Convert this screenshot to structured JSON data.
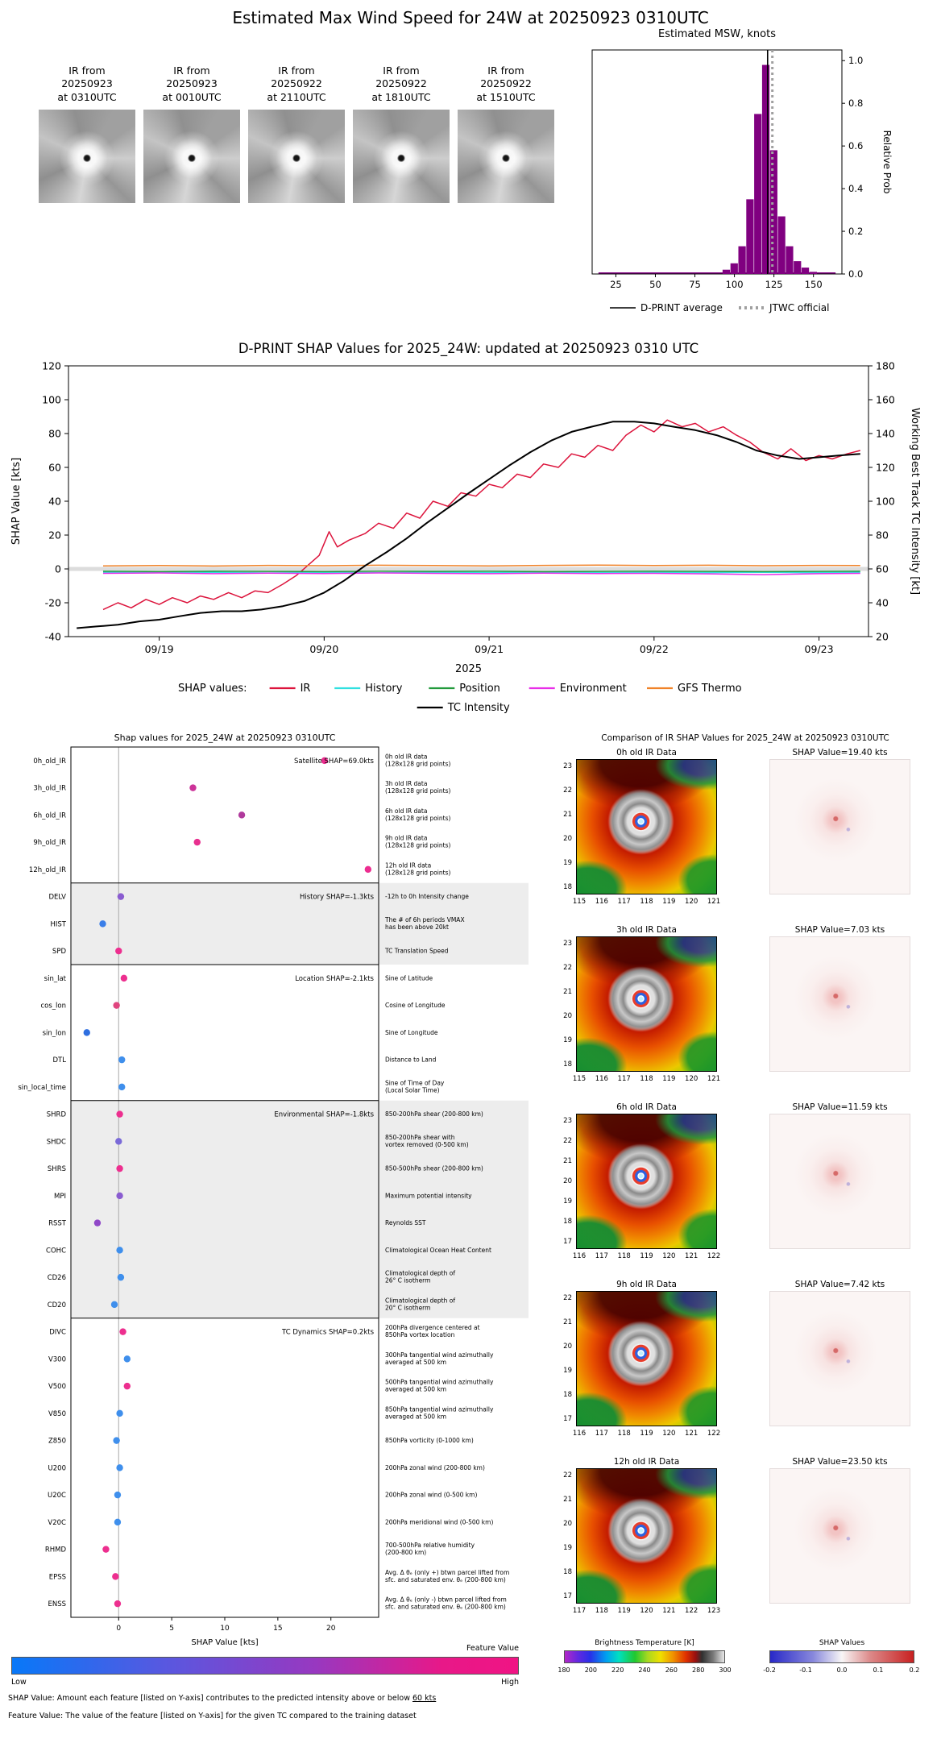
{
  "top": {
    "title": "Estimated Max Wind Speed for 24W at 20250923 0310UTC",
    "thumbnails": [
      {
        "label": "IR from\n20250923\nat 0310UTC"
      },
      {
        "label": "IR from\n20250923\nat 0010UTC"
      },
      {
        "label": "IR from\n20250922\nat 2110UTC"
      },
      {
        "label": "IR from\n20250922\nat 1810UTC"
      },
      {
        "label": "IR from\n20250922\nat 1510UTC"
      }
    ]
  },
  "footnotes": {
    "shap_pre": "SHAP Value: Amount each feature [listed on Y-axis] contributes to the predicted intensity above or below ",
    "shap_underline": "60 kts",
    "feature": "Feature Value: The value of the feature [listed on Y-axis] for the given TC compared to the training dataset"
  },
  "feature_value_colorbar": {
    "label": "Feature Value",
    "low": "Low",
    "high": "High"
  },
  "chart_data": [
    {
      "id": "msw_histogram",
      "type": "bar",
      "title": "Estimated MSW, knots",
      "ylabel": "Relative Prob",
      "xlim": [
        10,
        168
      ],
      "ylim": [
        0,
        1.05
      ],
      "xticks": [
        25,
        50,
        75,
        100,
        125,
        150
      ],
      "yticks": [
        0.0,
        0.2,
        0.4,
        0.6,
        0.8,
        1.0
      ],
      "bin_width": 5,
      "bar_color": "#800080",
      "x": [
        95,
        100,
        105,
        110,
        115,
        120,
        125,
        130,
        135,
        140,
        145,
        150
      ],
      "values": [
        0.02,
        0.05,
        0.13,
        0.35,
        0.75,
        0.98,
        0.58,
        0.27,
        0.13,
        0.06,
        0.03,
        0.01
      ],
      "dprint_average": 121,
      "jtwc_official": 124,
      "legend": [
        {
          "label": "D-PRINT average",
          "style": "solid",
          "color": "#000000"
        },
        {
          "label": "JTWC official",
          "style": "dashed",
          "color": "#a0a0a0"
        }
      ]
    },
    {
      "id": "shap_timeseries",
      "type": "line",
      "title": "D-PRINT SHAP Values for 2025_24W: updated at 20250923 0310 UTC",
      "ylabel_left": "SHAP Value [kts]",
      "ylabel_right": "Working Best Track TC Intensity [kt]",
      "xlabel": "2025",
      "xtick_labels": [
        "09/19",
        "09/20",
        "09/21",
        "09/22",
        "09/23"
      ],
      "xtick_positions": [
        1,
        2,
        3,
        4,
        5
      ],
      "xlim": [
        0.45,
        5.3
      ],
      "ylim_left": [
        -40,
        120
      ],
      "ylim_right": [
        20,
        180
      ],
      "yticks_left": [
        -40,
        -20,
        0,
        20,
        40,
        60,
        80,
        100,
        120
      ],
      "yticks_right": [
        20,
        40,
        60,
        80,
        100,
        120,
        140,
        160,
        180
      ],
      "legend_title": "SHAP values:",
      "series": [
        {
          "name": "IR",
          "axis": "left",
          "color": "#dc143c",
          "x": [
            0.66,
            0.75,
            0.83,
            0.92,
            1.0,
            1.08,
            1.17,
            1.25,
            1.33,
            1.42,
            1.5,
            1.58,
            1.66,
            1.75,
            1.83,
            1.9,
            1.97,
            2.03,
            2.08,
            2.15,
            2.25,
            2.33,
            2.42,
            2.5,
            2.58,
            2.66,
            2.75,
            2.83,
            2.92,
            3.0,
            3.08,
            3.17,
            3.25,
            3.33,
            3.42,
            3.5,
            3.58,
            3.66,
            3.75,
            3.83,
            3.92,
            4.0,
            4.08,
            4.17,
            4.25,
            4.33,
            4.42,
            4.5,
            4.58,
            4.66,
            4.75,
            4.83,
            4.92,
            5.0,
            5.08,
            5.17,
            5.25
          ],
          "y": [
            -24,
            -20,
            -23,
            -18,
            -21,
            -17,
            -20,
            -16,
            -18,
            -14,
            -17,
            -13,
            -14,
            -9,
            -4,
            2,
            8,
            22,
            13,
            17,
            21,
            27,
            24,
            33,
            30,
            40,
            37,
            45,
            43,
            50,
            48,
            56,
            54,
            62,
            60,
            68,
            66,
            73,
            70,
            79,
            85,
            81,
            88,
            84,
            86,
            81,
            84,
            79,
            75,
            69,
            65,
            71,
            64,
            67,
            65,
            68,
            70
          ]
        },
        {
          "name": "History",
          "axis": "left",
          "color": "#30e0e0",
          "x": [
            0.66,
            1.0,
            1.33,
            1.66,
            2.0,
            2.33,
            2.66,
            3.0,
            3.33,
            3.66,
            4.0,
            4.33,
            4.66,
            5.0,
            5.25
          ],
          "y": [
            -2,
            -2.3,
            -2,
            -2.4,
            -2.1,
            -2.3,
            -2,
            -2.2,
            -2,
            -2.3,
            -2.1,
            -2.2,
            -2,
            -2.2,
            -2
          ]
        },
        {
          "name": "Position",
          "axis": "left",
          "color": "#229a3c",
          "x": [
            0.66,
            1.0,
            1.33,
            1.66,
            2.0,
            2.33,
            2.66,
            3.0,
            3.33,
            3.66,
            4.0,
            4.33,
            4.66,
            5.0,
            5.25
          ],
          "y": [
            -1.4,
            -1.6,
            -1.4,
            -1.5,
            -1.6,
            -1.4,
            -1.5,
            -1.4,
            -1.6,
            -1.5,
            -1.4,
            -1.5,
            -1.6,
            -1.5,
            -1.4
          ]
        },
        {
          "name": "Environment",
          "axis": "left",
          "color": "#e82ee8",
          "x": [
            0.66,
            1.0,
            1.33,
            1.66,
            2.0,
            2.33,
            2.66,
            3.0,
            3.33,
            3.66,
            4.0,
            4.33,
            4.66,
            5.0,
            5.25
          ],
          "y": [
            -2.6,
            -2.4,
            -2.8,
            -2.5,
            -2.7,
            -2.4,
            -2.6,
            -2.8,
            -2.5,
            -2.7,
            -2.6,
            -2.9,
            -3.4,
            -2.8,
            -2.6
          ]
        },
        {
          "name": "GFS Thermo",
          "axis": "left",
          "color": "#f08228",
          "x": [
            0.66,
            1.0,
            1.33,
            1.66,
            2.0,
            2.33,
            2.66,
            3.0,
            3.33,
            3.66,
            4.0,
            4.33,
            4.66,
            5.0,
            5.25
          ],
          "y": [
            1.8,
            2.0,
            1.7,
            2.1,
            1.9,
            2.2,
            2.0,
            1.8,
            2.1,
            2.3,
            2.0,
            2.2,
            1.9,
            2.1,
            2.0
          ]
        },
        {
          "name": "TC Intensity",
          "axis": "right",
          "color": "#000000",
          "x": [
            0.5,
            0.62,
            0.75,
            0.88,
            1.0,
            1.12,
            1.25,
            1.38,
            1.5,
            1.62,
            1.75,
            1.88,
            2.0,
            2.12,
            2.25,
            2.38,
            2.5,
            2.62,
            2.75,
            2.88,
            3.0,
            3.12,
            3.25,
            3.38,
            3.5,
            3.62,
            3.75,
            3.88,
            4.0,
            4.12,
            4.25,
            4.38,
            4.5,
            4.62,
            4.75,
            4.88,
            5.0,
            5.12,
            5.25
          ],
          "y": [
            25,
            26,
            27,
            29,
            30,
            32,
            34,
            35,
            35,
            36,
            38,
            41,
            46,
            53,
            62,
            70,
            78,
            87,
            96,
            105,
            113,
            121,
            129,
            136,
            141,
            144,
            147,
            147,
            146,
            144,
            142,
            139,
            135,
            130,
            127,
            125,
            126,
            127,
            128
          ]
        }
      ]
    },
    {
      "id": "shap_features",
      "type": "scatter",
      "title": "Shap values for 2025_24W at 20250923 0310UTC",
      "xlabel": "SHAP Value [kts]",
      "xticks": [
        0,
        5,
        10,
        15,
        20
      ],
      "xlim": [
        -4.5,
        24.5
      ],
      "sections": [
        {
          "label": "Satellite SHAP=69.0kts",
          "rows": [
            0,
            4
          ]
        },
        {
          "label": "History SHAP=-1.3kts",
          "rows": [
            5,
            7
          ]
        },
        {
          "label": "Location SHAP=-2.1kts",
          "rows": [
            8,
            12
          ]
        },
        {
          "label": "Environmental SHAP=-1.8kts",
          "rows": [
            13,
            20
          ]
        },
        {
          "label": "TC Dynamics SHAP=0.2kts",
          "rows": [
            21,
            31
          ]
        }
      ],
      "features": [
        {
          "label": "0h_old_IR",
          "value": 19.4,
          "color": "#ec2d90",
          "desc": "0h old IR data\n(128x128 grid points)"
        },
        {
          "label": "3h_old_IR",
          "value": 7.0,
          "color": "#cc3399",
          "desc": "3h old IR data\n(128x128 grid points)"
        },
        {
          "label": "6h_old_IR",
          "value": 11.6,
          "color": "#b03a9c",
          "desc": "6h old IR data\n(128x128 grid points)"
        },
        {
          "label": "9h_old_IR",
          "value": 7.4,
          "color": "#e8308f",
          "desc": "9h old IR data\n(128x128 grid points)"
        },
        {
          "label": "12h_old_IR",
          "value": 23.5,
          "color": "#ec2d90",
          "desc": "12h old IR data\n(128x128 grid points)"
        },
        {
          "label": "DELV",
          "value": 0.2,
          "color": "#8a5cd0",
          "desc": "-12h to 0h Intensity change"
        },
        {
          "label": "HIST",
          "value": -1.5,
          "color": "#3a7ee8",
          "desc": "The # of 6h periods VMAX\nhas been above 20kt"
        },
        {
          "label": "SPD",
          "value": 0.0,
          "color": "#ed2f8f",
          "desc": "TC Translation Speed"
        },
        {
          "label": "sin_lat",
          "value": 0.5,
          "color": "#ed2f8f",
          "desc": "Sine of Latitude"
        },
        {
          "label": "cos_lon",
          "value": -0.2,
          "color": "#e0457f",
          "desc": "Cosine of Longitude"
        },
        {
          "label": "sin_lon",
          "value": -3.0,
          "color": "#2f6fe0",
          "desc": "Sine of Longitude"
        },
        {
          "label": "DTL",
          "value": 0.3,
          "color": "#3f8fec",
          "desc": "Distance to Land"
        },
        {
          "label": "sin_local_time",
          "value": 0.3,
          "color": "#3f8fec",
          "desc": "Sine of Time of Day\n(Local Solar Time)"
        },
        {
          "label": "SHRD",
          "value": 0.1,
          "color": "#ed2f8f",
          "desc": "850-200hPa shear (200-800 km)"
        },
        {
          "label": "SHDC",
          "value": 0.0,
          "color": "#7a6ad8",
          "desc": "850-200hPa shear with\nvortex removed (0-500 km)"
        },
        {
          "label": "SHRS",
          "value": 0.1,
          "color": "#ed2f8f",
          "desc": "850-500hPa shear (200-800 km)"
        },
        {
          "label": "MPI",
          "value": 0.1,
          "color": "#8a5cd0",
          "desc": "Maximum potential intensity"
        },
        {
          "label": "RSST",
          "value": -2.0,
          "color": "#9048c8",
          "desc": "Reynolds SST"
        },
        {
          "label": "COHC",
          "value": 0.1,
          "color": "#3f8fec",
          "desc": "Climatological Ocean Heat Content"
        },
        {
          "label": "CD26",
          "value": 0.2,
          "color": "#3f8fec",
          "desc": "Climatological depth of\n26° C isotherm"
        },
        {
          "label": "CD20",
          "value": -0.4,
          "color": "#3f8fec",
          "desc": "Climatological depth of\n20° C isotherm"
        },
        {
          "label": "DIVC",
          "value": 0.4,
          "color": "#ed2f8f",
          "desc": "200hPa divergence centered at\n850hPa vortex location"
        },
        {
          "label": "V300",
          "value": 0.8,
          "color": "#3f8fec",
          "desc": "300hPa tangential wind azimuthally\naveraged at 500 km"
        },
        {
          "label": "V500",
          "value": 0.8,
          "color": "#ed2f8f",
          "desc": "500hPa tangential wind azimuthally\naveraged at 500 km"
        },
        {
          "label": "V850",
          "value": 0.1,
          "color": "#3f8fec",
          "desc": "850hPa tangential wind azimuthally\naveraged at 500 km"
        },
        {
          "label": "Z850",
          "value": -0.2,
          "color": "#3f8fec",
          "desc": "850hPa vorticity (0-1000 km)"
        },
        {
          "label": "U200",
          "value": 0.1,
          "color": "#3f8fec",
          "desc": "200hPa zonal wind (200-800 km)"
        },
        {
          "label": "U20C",
          "value": -0.1,
          "color": "#3f8fec",
          "desc": "200hPa zonal wind (0-500 km)"
        },
        {
          "label": "V20C",
          "value": -0.1,
          "color": "#3f8fec",
          "desc": "200hPa meridional wind (0-500 km)"
        },
        {
          "label": "RHMD",
          "value": -1.2,
          "color": "#ed2f8f",
          "desc": "700-500hPa relative humidity\n(200-800 km)"
        },
        {
          "label": "EPSS",
          "value": -0.3,
          "color": "#ed2f8f",
          "desc": "Avg. Δ θₑ (only +) btwn parcel lifted from\nsfc. and saturated env. θₑ (200-800 km)"
        },
        {
          "label": "ENSS",
          "value": -0.1,
          "color": "#ed2f8f",
          "desc": "Avg. Δ θₑ (only -) btwn parcel lifted from\nsfc. and saturated env. θₑ (200-800 km)"
        }
      ]
    },
    {
      "id": "ir_comparison",
      "type": "heatmap",
      "title": "Comparison of IR SHAP Values for 2025_24W at 20250923 0310UTC",
      "rows": [
        {
          "ir_title": "0h old IR Data",
          "shap_title": "SHAP Value=19.40 kts",
          "lat_ticks": [
            23,
            22,
            21,
            20,
            19,
            18
          ],
          "lon_ticks": [
            115,
            116,
            117,
            118,
            119,
            120,
            121
          ]
        },
        {
          "ir_title": "3h old IR Data",
          "shap_title": "SHAP Value=7.03 kts",
          "lat_ticks": [
            23,
            22,
            21,
            20,
            19,
            18
          ],
          "lon_ticks": [
            115,
            116,
            117,
            118,
            119,
            120,
            121
          ]
        },
        {
          "ir_title": "6h old IR Data",
          "shap_title": "SHAP Value=11.59 kts",
          "lat_ticks": [
            23,
            22,
            21,
            20,
            19,
            18,
            17
          ],
          "lon_ticks": [
            116,
            117,
            118,
            119,
            120,
            121,
            122
          ]
        },
        {
          "ir_title": "9h old IR Data",
          "shap_title": "SHAP Value=7.42 kts",
          "lat_ticks": [
            22,
            21,
            20,
            19,
            18,
            17
          ],
          "lon_ticks": [
            116,
            117,
            118,
            119,
            120,
            121,
            122
          ]
        },
        {
          "ir_title": "12h old IR Data",
          "shap_title": "SHAP Value=23.50 kts",
          "lat_ticks": [
            22,
            21,
            20,
            19,
            18,
            17
          ],
          "lon_ticks": [
            117,
            118,
            119,
            120,
            121,
            122,
            123
          ]
        }
      ],
      "bt_colorbar": {
        "label": "Brightness Temperature [K]",
        "ticks": [
          180,
          200,
          220,
          240,
          260,
          280,
          300
        ]
      },
      "shap_colorbar": {
        "label": "SHAP Values",
        "ticks": [
          "-0.2",
          "-0.1",
          "0.0",
          "0.1",
          "0.2"
        ]
      }
    }
  ]
}
